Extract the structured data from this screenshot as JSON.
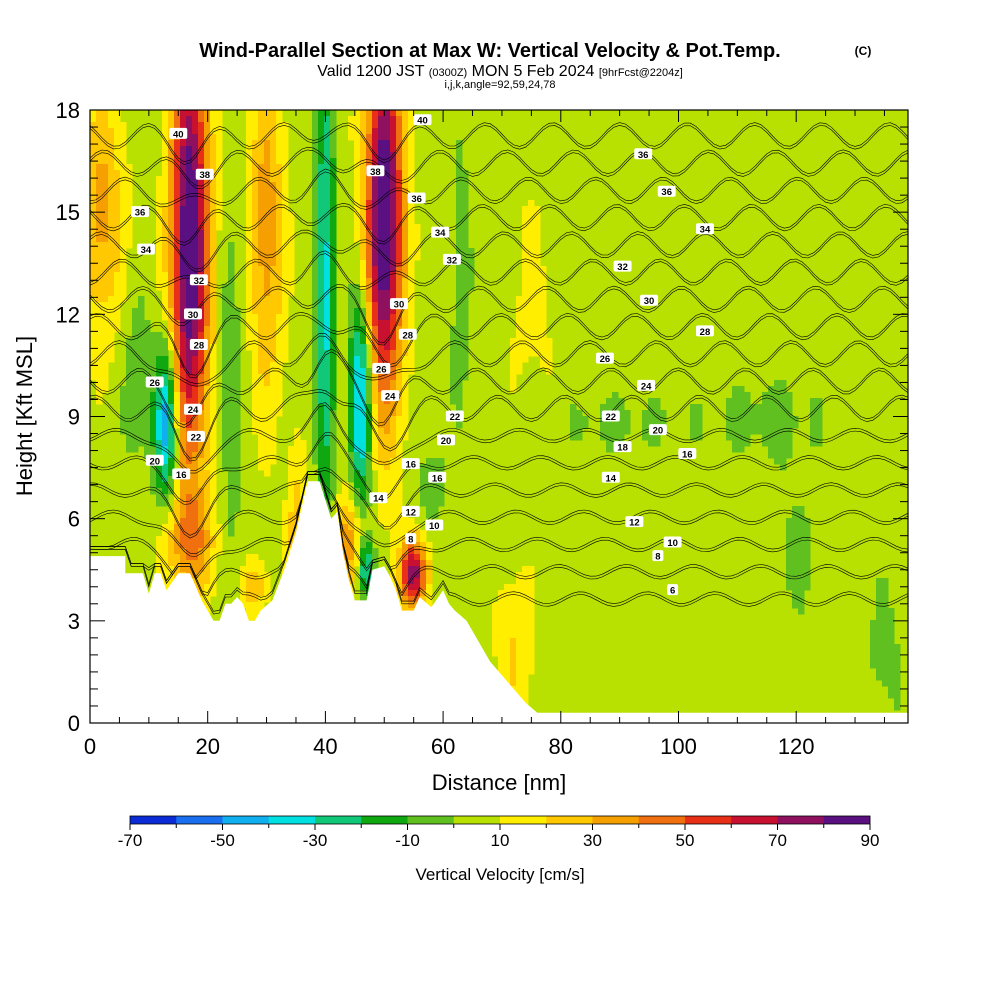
{
  "title": {
    "main": "Wind-Parallel Section at Max W: Vertical Velocity & Pot.Temp.",
    "copyright": "(C)",
    "valid_prefix": "Valid 1200 JST",
    "valid_utc": "(0300Z)",
    "valid_date": "MON 5 Feb 2024",
    "valid_fcst": "[9hrFcst@2204z]",
    "params": "i,j,k,angle=92,59,24,78"
  },
  "chart_data": {
    "type": "heatmap",
    "xlabel": "Distance [nm]",
    "ylabel": "Height [Kft MSL]",
    "xlim": [
      0,
      139
    ],
    "ylim": [
      0,
      18
    ],
    "x_ticks": [
      "0",
      "20",
      "40",
      "60",
      "80",
      "100",
      "120"
    ],
    "y_ticks": [
      "0",
      "3",
      "6",
      "9",
      "12",
      "15",
      "18"
    ],
    "terrain_profile": [
      [
        0,
        4.9
      ],
      [
        6,
        4.9
      ],
      [
        6,
        4.4
      ],
      [
        9,
        4.4
      ],
      [
        10,
        3.8
      ],
      [
        11,
        4.4
      ],
      [
        12,
        4.4
      ],
      [
        13,
        3.9
      ],
      [
        15,
        4.4
      ],
      [
        17,
        4.4
      ],
      [
        18,
        4.0
      ],
      [
        19,
        3.6
      ],
      [
        20,
        3.3
      ],
      [
        21,
        3.0
      ],
      [
        22,
        3.0
      ],
      [
        23,
        3.5
      ],
      [
        24,
        3.5
      ],
      [
        25,
        3.7
      ],
      [
        26,
        3.5
      ],
      [
        27,
        3.0
      ],
      [
        28,
        3.0
      ],
      [
        29,
        3.3
      ],
      [
        31,
        3.6
      ],
      [
        33,
        4.5
      ],
      [
        35,
        5.6
      ],
      [
        37,
        7.1
      ],
      [
        39,
        7.1
      ],
      [
        41,
        6.0
      ],
      [
        42,
        6.2
      ],
      [
        43,
        5.0
      ],
      [
        44,
        4.2
      ],
      [
        45,
        3.6
      ],
      [
        47,
        3.6
      ],
      [
        48,
        4.5
      ],
      [
        50,
        4.6
      ],
      [
        51,
        4.3
      ],
      [
        52,
        3.9
      ],
      [
        53,
        3.3
      ],
      [
        55,
        3.3
      ],
      [
        56,
        3.7
      ],
      [
        58,
        3.4
      ],
      [
        60,
        3.9
      ],
      [
        61,
        3.5
      ],
      [
        62,
        3.3
      ],
      [
        64,
        3.0
      ],
      [
        66,
        2.4
      ],
      [
        68,
        1.8
      ],
      [
        70,
        1.4
      ],
      [
        72,
        1.0
      ],
      [
        74,
        0.6
      ],
      [
        76,
        0.3
      ],
      [
        82,
        0.3
      ],
      [
        139,
        0.3
      ]
    ],
    "colorbar": {
      "label": "Vertical Velocity [cm/s]",
      "tick_labels": [
        "-70",
        "-50",
        "-30",
        "-10",
        "10",
        "30",
        "50",
        "70",
        "90"
      ],
      "bounds": [
        -70,
        90
      ],
      "colors": [
        "#0b2bd6",
        "#1a6ff0",
        "#10b0f0",
        "#00e0e0",
        "#10c878",
        "#10a810",
        "#60c020",
        "#b8e000",
        "#ffee00",
        "#ffc800",
        "#f5a000",
        "#f07010",
        "#e83018",
        "#c81030",
        "#901060",
        "#5a1080"
      ]
    },
    "velocity_field": [
      {
        "x": 17,
        "y": 14.0,
        "sx": 2.2,
        "sy": 4.5,
        "w": 90
      },
      {
        "x": 50,
        "y": 14.8,
        "sx": 2.2,
        "sy": 3.8,
        "w": 90
      },
      {
        "x": 17,
        "y": 5.3,
        "sx": 3.0,
        "sy": 1.0,
        "w": 28
      },
      {
        "x": 30,
        "y": 14.5,
        "sx": 2.0,
        "sy": 3.5,
        "w": 30
      },
      {
        "x": 2,
        "y": 15.0,
        "sx": 2.5,
        "sy": 2.5,
        "w": 28
      },
      {
        "x": 55,
        "y": 4.4,
        "sx": 1.6,
        "sy": 0.7,
        "w": 70
      },
      {
        "x": 44,
        "y": 5.3,
        "sx": 1.5,
        "sy": 1.0,
        "w": 35
      },
      {
        "x": 35,
        "y": 5.8,
        "sx": 1.0,
        "sy": 1.5,
        "w": 20
      },
      {
        "x": 13,
        "y": 8.8,
        "sx": 1.4,
        "sy": 1.6,
        "w": -55
      },
      {
        "x": 46,
        "y": 9.5,
        "sx": 1.3,
        "sy": 2.2,
        "w": -55
      },
      {
        "x": 40,
        "y": 13.0,
        "sx": 1.1,
        "sy": 5.0,
        "w": -40
      },
      {
        "x": 8,
        "y": 10.0,
        "sx": 2.0,
        "sy": 2.0,
        "w": -12
      },
      {
        "x": 24,
        "y": 9.5,
        "sx": 1.5,
        "sy": 4.0,
        "w": -12
      },
      {
        "x": 63,
        "y": 13.0,
        "sx": 1.3,
        "sy": 3.5,
        "w": -12
      },
      {
        "x": 58,
        "y": 7.0,
        "sx": 2.0,
        "sy": 1.0,
        "w": -10
      },
      {
        "x": 47,
        "y": 4.5,
        "sx": 1.0,
        "sy": 0.6,
        "w": -40
      },
      {
        "x": 28,
        "y": 4.0,
        "sx": 1.5,
        "sy": 0.5,
        "w": 22
      },
      {
        "x": 88,
        "y": 8.8,
        "sx": 10.0,
        "sy": 0.8,
        "w": -8
      },
      {
        "x": 115,
        "y": 9.0,
        "sx": 8.0,
        "sy": 1.0,
        "w": -8
      },
      {
        "x": 120,
        "y": 5.0,
        "sx": 4.0,
        "sy": 2.0,
        "w": -7
      },
      {
        "x": 135,
        "y": 2.0,
        "sx": 3.0,
        "sy": 2.0,
        "w": -8
      },
      {
        "x": 72,
        "y": 2.0,
        "sx": 2.0,
        "sy": 1.5,
        "w": 15
      },
      {
        "x": 75,
        "y": 12.0,
        "sx": 5.0,
        "sy": 4.0,
        "w": 5
      }
    ],
    "theta_levels": [
      "6",
      "8",
      "10",
      "12",
      "14",
      "16",
      "18",
      "20",
      "22",
      "24",
      "26",
      "28",
      "30",
      "32",
      "34",
      "36",
      "38",
      "40"
    ],
    "theta_labels": [
      {
        "text": "40",
        "x": 15,
        "y": 17.3
      },
      {
        "text": "38",
        "x": 19.5,
        "y": 16.1
      },
      {
        "text": "36",
        "x": 8.5,
        "y": 15.0
      },
      {
        "text": "34",
        "x": 9.5,
        "y": 13.9
      },
      {
        "text": "32",
        "x": 18.5,
        "y": 13.0
      },
      {
        "text": "30",
        "x": 17.5,
        "y": 12.0
      },
      {
        "text": "28",
        "x": 18.5,
        "y": 11.1
      },
      {
        "text": "26",
        "x": 11,
        "y": 10.0
      },
      {
        "text": "24",
        "x": 17.5,
        "y": 9.2
      },
      {
        "text": "22",
        "x": 18,
        "y": 8.4
      },
      {
        "text": "20",
        "x": 11,
        "y": 7.7
      },
      {
        "text": "16",
        "x": 15.5,
        "y": 7.3
      },
      {
        "text": "40",
        "x": 56.5,
        "y": 17.7
      },
      {
        "text": "38",
        "x": 48.5,
        "y": 16.2
      },
      {
        "text": "36",
        "x": 55.5,
        "y": 15.4
      },
      {
        "text": "34",
        "x": 59.5,
        "y": 14.4
      },
      {
        "text": "32",
        "x": 61.5,
        "y": 13.6
      },
      {
        "text": "30",
        "x": 52.5,
        "y": 12.3
      },
      {
        "text": "28",
        "x": 54,
        "y": 11.4
      },
      {
        "text": "26",
        "x": 49.5,
        "y": 10.4
      },
      {
        "text": "24",
        "x": 51,
        "y": 9.6
      },
      {
        "text": "22",
        "x": 62,
        "y": 9.0
      },
      {
        "text": "20",
        "x": 60.5,
        "y": 8.3
      },
      {
        "text": "16",
        "x": 54.5,
        "y": 7.6
      },
      {
        "text": "16",
        "x": 59,
        "y": 7.2
      },
      {
        "text": "14",
        "x": 49,
        "y": 6.6
      },
      {
        "text": "12",
        "x": 54.5,
        "y": 6.2
      },
      {
        "text": "10",
        "x": 58.5,
        "y": 5.8
      },
      {
        "text": "8",
        "x": 54.5,
        "y": 5.4
      },
      {
        "text": "36",
        "x": 94,
        "y": 16.7
      },
      {
        "text": "36",
        "x": 98,
        "y": 15.6
      },
      {
        "text": "34",
        "x": 104.5,
        "y": 14.5
      },
      {
        "text": "32",
        "x": 90.5,
        "y": 13.4
      },
      {
        "text": "30",
        "x": 95,
        "y": 12.4
      },
      {
        "text": "28",
        "x": 104.5,
        "y": 11.5
      },
      {
        "text": "26",
        "x": 87.5,
        "y": 10.7
      },
      {
        "text": "24",
        "x": 94.5,
        "y": 9.9
      },
      {
        "text": "22",
        "x": 88.5,
        "y": 9.0
      },
      {
        "text": "20",
        "x": 96.5,
        "y": 8.6
      },
      {
        "text": "18",
        "x": 90.5,
        "y": 8.1
      },
      {
        "text": "16",
        "x": 101.5,
        "y": 7.9
      },
      {
        "text": "14",
        "x": 88.5,
        "y": 7.2
      },
      {
        "text": "12",
        "x": 92.5,
        "y": 5.9
      },
      {
        "text": "10",
        "x": 99,
        "y": 5.3
      },
      {
        "text": "8",
        "x": 96.5,
        "y": 4.9
      },
      {
        "text": "6",
        "x": 99,
        "y": 3.9
      }
    ]
  }
}
